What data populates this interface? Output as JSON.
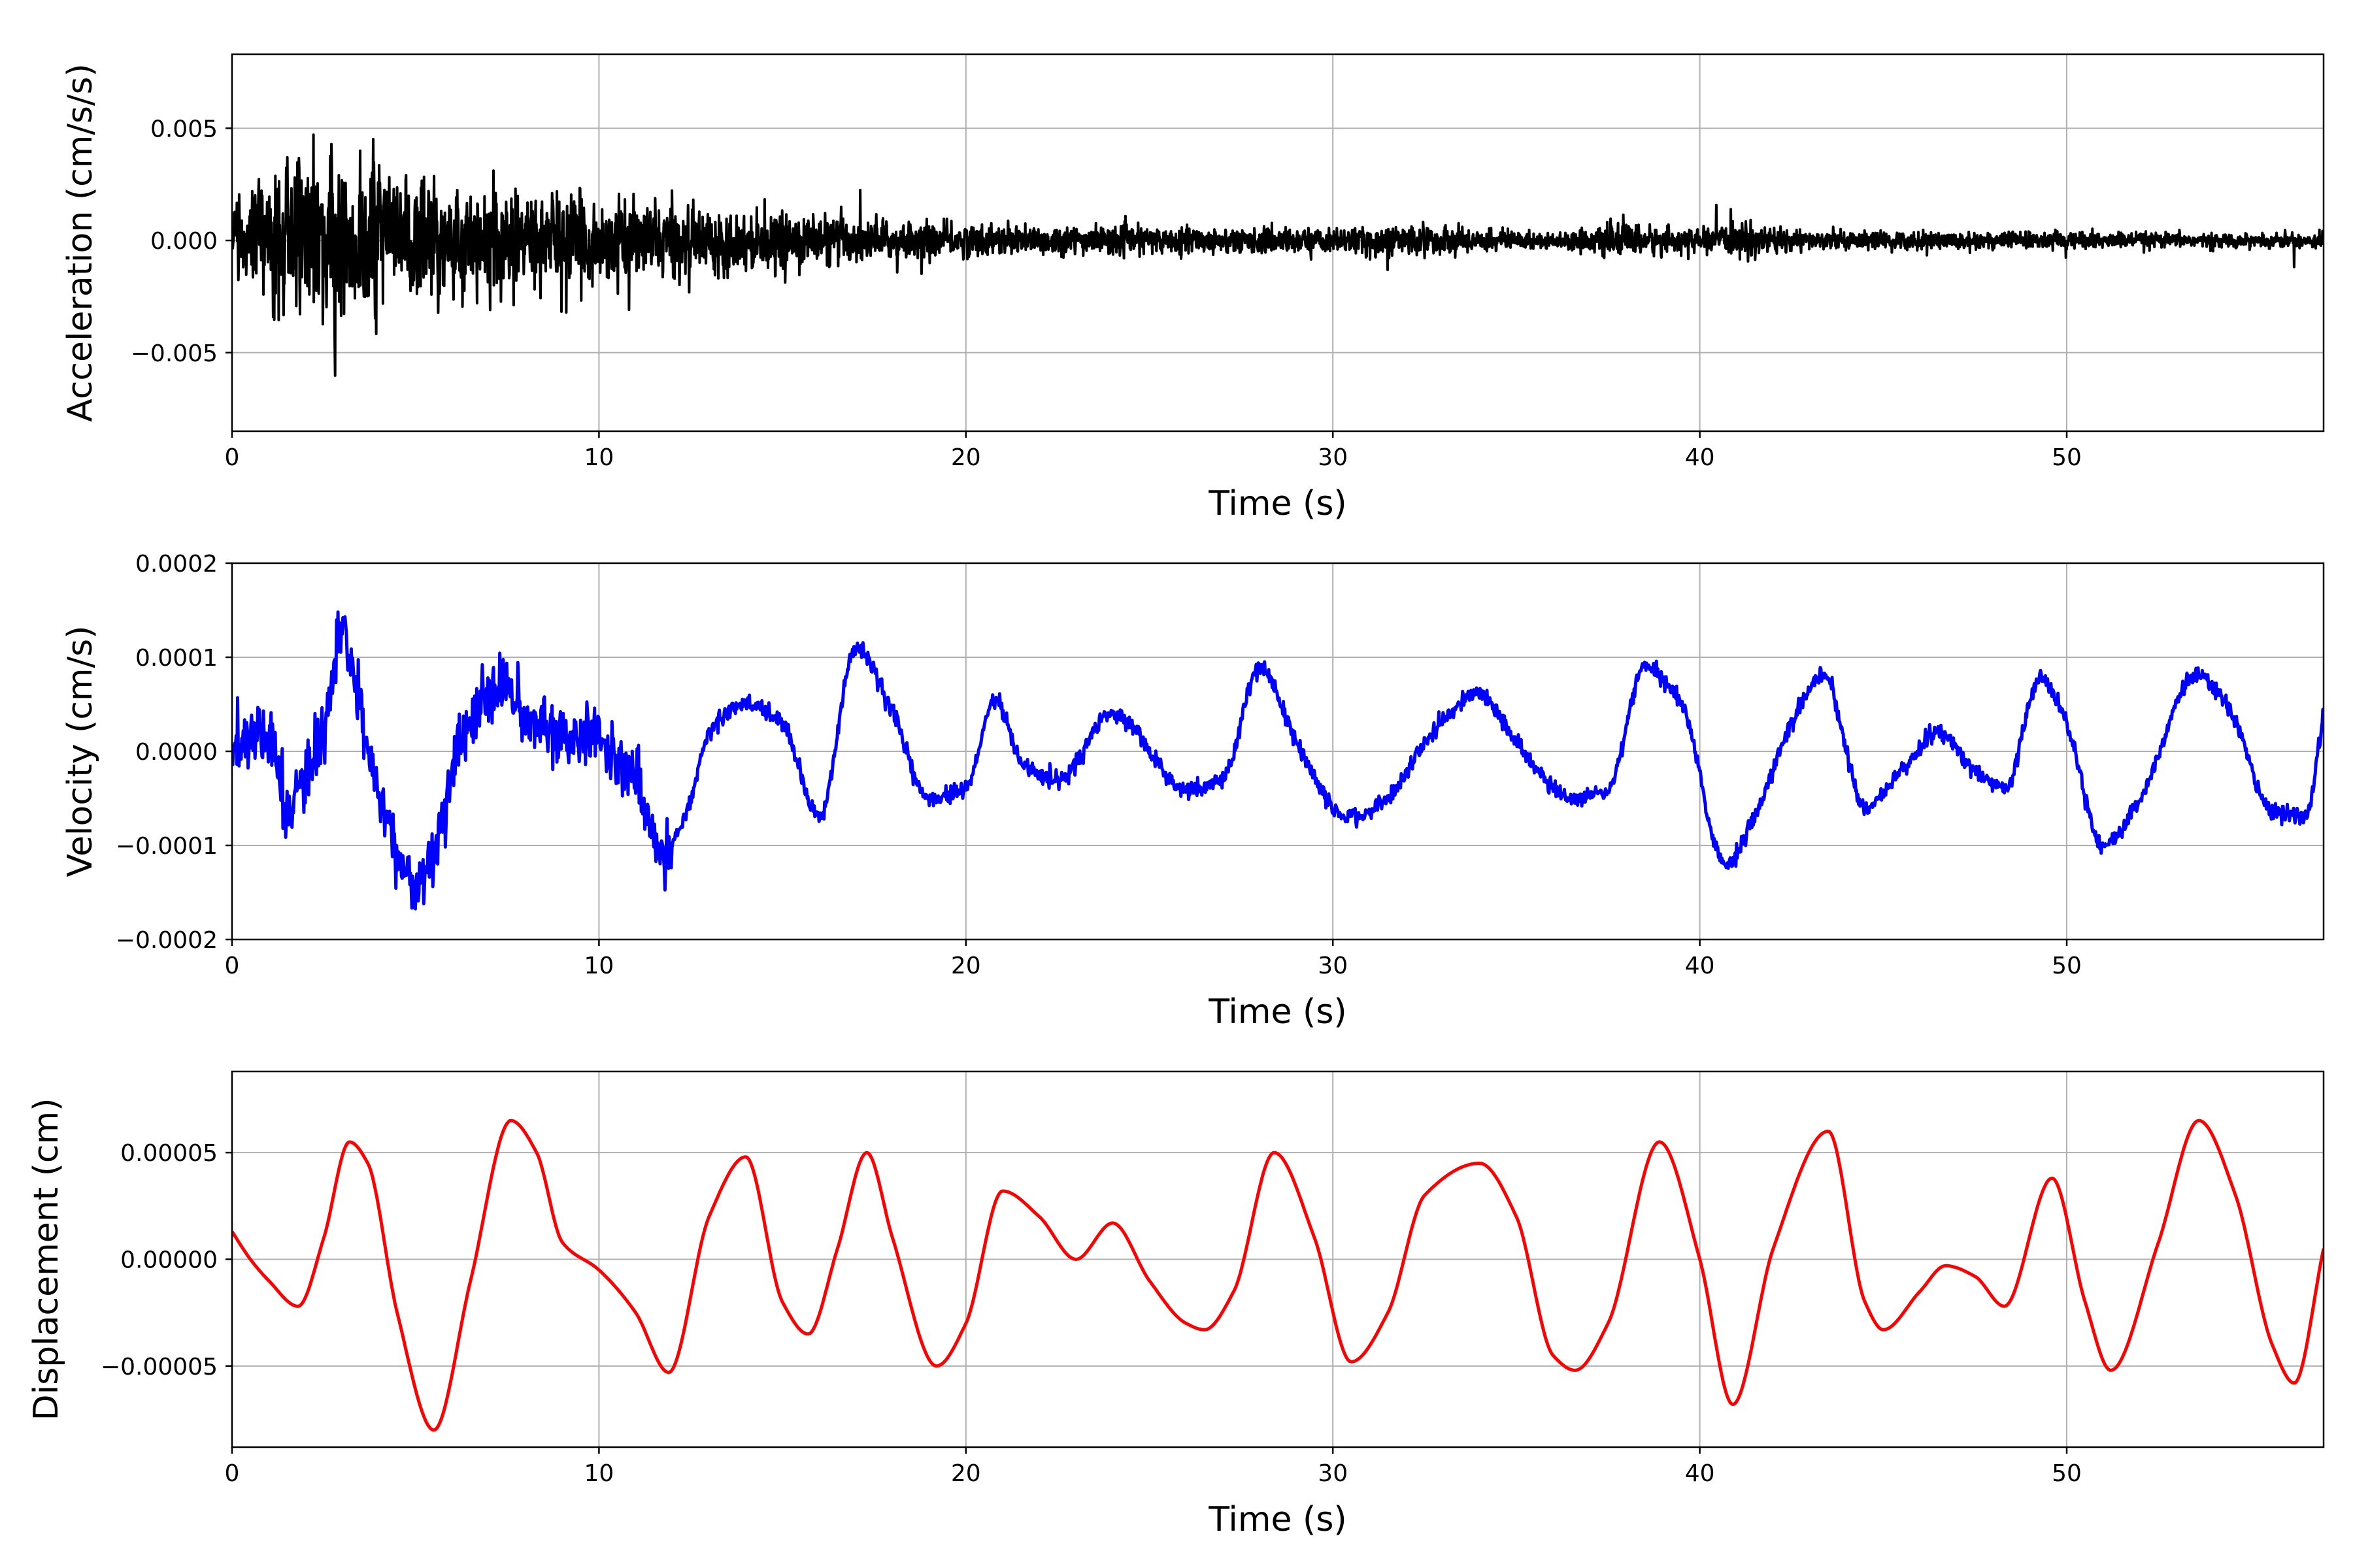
{
  "chart_data": [
    {
      "type": "line",
      "title": "",
      "xlabel": "Time (s)",
      "ylabel": "Acceleration (cm/s/s)",
      "xlim": [
        0,
        57
      ],
      "ylim": [
        -0.0085,
        0.0083
      ],
      "xticks": [
        0,
        10,
        20,
        30,
        40,
        50
      ],
      "xtick_labels": [
        "0",
        "10",
        "20",
        "30",
        "40",
        "50"
      ],
      "yticks": [
        -0.005,
        0.0,
        0.005
      ],
      "ytick_labels": [
        "−0.005",
        "0.000",
        "0.005"
      ],
      "grid": true,
      "color": "#000000",
      "envelope_t": [
        0,
        1,
        2,
        3,
        4,
        5,
        6,
        7,
        8,
        9,
        10,
        11,
        12,
        13,
        14,
        16,
        17,
        18,
        20,
        22,
        25,
        28,
        30,
        32,
        34,
        36,
        38,
        40,
        41.3,
        43,
        46,
        50,
        53,
        55,
        57
      ],
      "envelope_amp": [
        0.0022,
        0.0042,
        0.0058,
        0.0062,
        0.0057,
        0.0048,
        0.0042,
        0.0036,
        0.0032,
        0.0032,
        0.0028,
        0.0026,
        0.0024,
        0.0021,
        0.0019,
        0.0017,
        0.0015,
        0.0013,
        0.0011,
        0.001,
        0.0009,
        0.00085,
        0.0008,
        0.0011,
        0.0008,
        0.0005,
        0.0011,
        0.0007,
        0.0012,
        0.0006,
        0.0006,
        0.0006,
        0.0005,
        0.0004,
        0.0006
      ],
      "series": [
        {
          "name": "",
          "values": []
        }
      ]
    },
    {
      "type": "line",
      "title": "",
      "xlabel": "Time (s)",
      "ylabel": "Velocity (cm/s)",
      "xlim": [
        0,
        57
      ],
      "ylim": [
        -0.0002,
        0.0002
      ],
      "xticks": [
        0,
        10,
        20,
        30,
        40,
        50
      ],
      "xtick_labels": [
        "0",
        "10",
        "20",
        "30",
        "40",
        "50"
      ],
      "yticks": [
        -0.0002,
        -0.0001,
        0.0,
        0.0001,
        0.0002
      ],
      "ytick_labels": [
        "−0.0002",
        "−0.0001",
        "0.0000",
        "0.0001",
        "0.0002"
      ],
      "grid": true,
      "color": "#0000ff",
      "series": [
        {
          "name": "",
          "x": [
            0,
            0.5,
            1.0,
            1.5,
            2.0,
            2.5,
            3.0,
            3.5,
            4.0,
            5.0,
            5.5,
            6.0,
            6.5,
            7.0,
            7.5,
            8.0,
            9.0,
            10.0,
            11.0,
            11.7,
            12.5,
            13.0,
            14.0,
            15.0,
            16.0,
            17.0,
            18.0,
            19.0,
            20.0,
            20.8,
            21.5,
            22.5,
            24.0,
            26.0,
            27.0,
            28.0,
            29.0,
            30.4,
            31.5,
            32.5,
            34.0,
            35.0,
            36.5,
            37.5,
            38.5,
            39.5,
            40.7,
            41.5,
            42.5,
            43.4,
            44.5,
            45.5,
            46.5,
            47.5,
            48.3,
            49.3,
            50.0,
            51.0,
            52.0,
            53.5,
            54.5,
            55.5,
            56.5,
            57.0
          ],
          "values": [
            -1e-05,
            2e-05,
            1.5e-05,
            -6e-05,
            -3e-05,
            2e-05,
            0.00012,
            4e-05,
            -4e-05,
            -0.00014,
            -0.00011,
            -2e-05,
            3e-05,
            6e-05,
            7e-05,
            3e-05,
            2e-05,
            1e-05,
            -3e-05,
            -0.00011,
            -5e-05,
            2e-05,
            5e-05,
            3e-05,
            -7e-05,
            0.00011,
            4e-05,
            -5e-05,
            -4e-05,
            5.5e-05,
            -1e-05,
            -3e-05,
            4e-05,
            -4e-05,
            -3e-05,
            9e-05,
            1e-05,
            -7e-05,
            -5e-05,
            1e-05,
            6e-05,
            1e-05,
            -5e-05,
            -4e-05,
            9e-05,
            5e-05,
            -0.00012,
            -7e-05,
            3e-05,
            8e-05,
            -6e-05,
            -2e-05,
            2e-05,
            -2e-05,
            -4e-05,
            8e-05,
            3e-05,
            -0.0001,
            -5e-05,
            8e-05,
            4e-05,
            -6e-05,
            -7e-05,
            4e-05
          ]
        }
      ]
    },
    {
      "type": "line",
      "title": "",
      "xlabel": "Time (s)",
      "ylabel": "Displacement (cm)",
      "xlim": [
        0,
        57
      ],
      "ylim": [
        -8.8e-05,
        8.8e-05
      ],
      "xticks": [
        0,
        10,
        20,
        30,
        40,
        50
      ],
      "xtick_labels": [
        "0",
        "10",
        "20",
        "30",
        "40",
        "50"
      ],
      "yticks": [
        -5e-05,
        0.0,
        5e-05
      ],
      "ytick_labels": [
        "−0.00005",
        "0.00000",
        "0.00005"
      ],
      "grid": true,
      "color": "#ff0000",
      "series": [
        {
          "name": "",
          "x": [
            0,
            0.5,
            1.0,
            1.8,
            2.5,
            3.2,
            3.7,
            4.5,
            5.5,
            6.5,
            7.6,
            8.3,
            9.0,
            10.0,
            11.0,
            11.9,
            13.0,
            14.0,
            15.0,
            15.7,
            16.5,
            17.3,
            18.0,
            19.2,
            20.0,
            21.0,
            22.0,
            23.0,
            24.0,
            25.0,
            26.0,
            26.5,
            27.3,
            28.4,
            29.5,
            30.5,
            31.5,
            32.5,
            34.0,
            35.0,
            36.0,
            36.6,
            37.5,
            38.9,
            40.0,
            40.9,
            42.0,
            43.5,
            44.5,
            45.0,
            46.0,
            46.7,
            47.5,
            48.3,
            49.6,
            50.5,
            51.2,
            52.5,
            53.6,
            54.6,
            55.6,
            56.2,
            57.0
          ],
          "values": [
            1.3e-05,
            0.0,
            -1e-05,
            -2.2e-05,
            1e-05,
            5.5e-05,
            4.5e-05,
            -2.5e-05,
            -8e-05,
            -1e-05,
            6.5e-05,
            5e-05,
            8e-06,
            -5e-06,
            -2.5e-05,
            -5.3e-05,
            2e-05,
            4.8e-05,
            -2e-05,
            -3.5e-05,
            5e-06,
            5e-05,
            1e-05,
            -5e-05,
            -3e-05,
            3.2e-05,
            2e-05,
            0.0,
            1.7e-05,
            -1e-05,
            -3e-05,
            -3.3e-05,
            -1.5e-05,
            5e-05,
            1e-05,
            -4.8e-05,
            -2.5e-05,
            3e-05,
            4.5e-05,
            2e-05,
            -4.5e-05,
            -5.2e-05,
            -3e-05,
            5.5e-05,
            0.0,
            -6.8e-05,
            5e-06,
            6e-05,
            -2e-05,
            -3.3e-05,
            -1.5e-05,
            -3e-06,
            -8e-06,
            -2.2e-05,
            3.8e-05,
            -2e-05,
            -5.2e-05,
            8e-06,
            6.5e-05,
            3e-05,
            -4e-05,
            -5.8e-05,
            5e-06
          ]
        }
      ]
    }
  ]
}
